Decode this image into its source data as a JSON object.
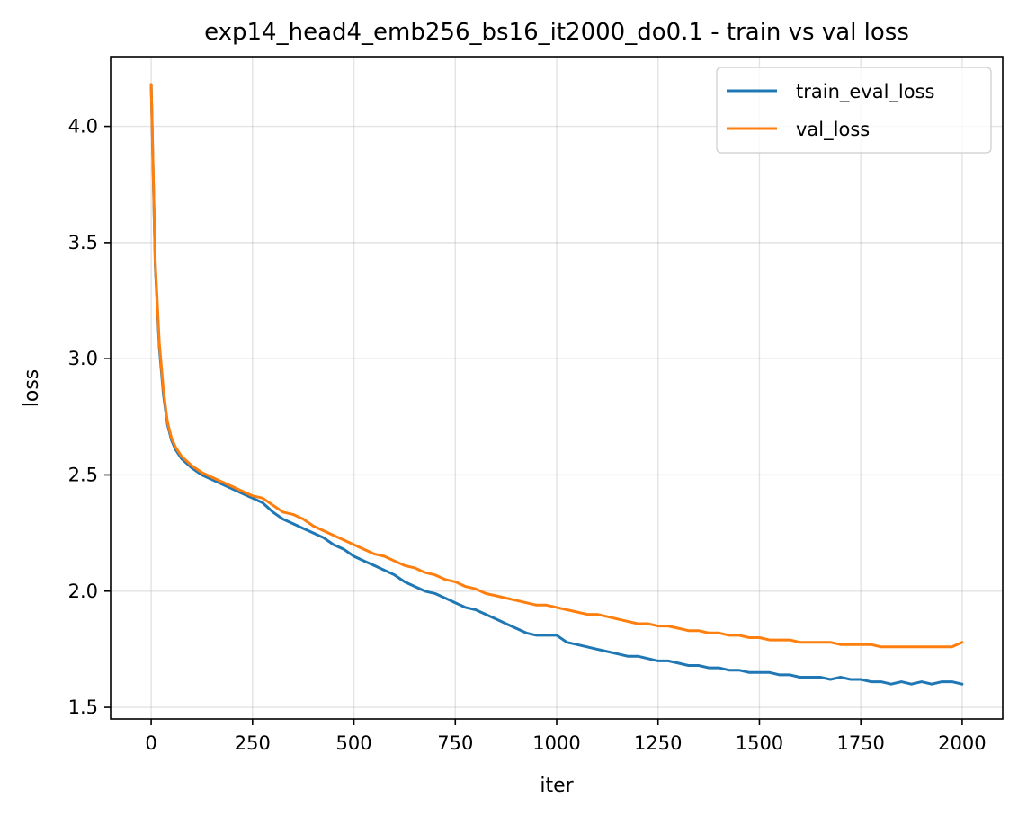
{
  "chart_data": {
    "type": "line",
    "title": "exp14_head4_emb256_bs16_it2000_do0.1 - train vs val loss",
    "xlabel": "iter",
    "ylabel": "loss",
    "xlim": [
      -100,
      2100
    ],
    "ylim": [
      1.45,
      4.3
    ],
    "x_ticks": [
      0,
      250,
      500,
      750,
      1000,
      1250,
      1500,
      1750,
      2000
    ],
    "y_ticks": [
      1.5,
      2.0,
      2.5,
      3.0,
      3.5,
      4.0
    ],
    "y_tick_labels": [
      "1.5",
      "2.0",
      "2.5",
      "3.0",
      "3.5",
      "4.0"
    ],
    "grid": true,
    "legend_position": "top-right",
    "series": [
      {
        "name": "train_eval_loss",
        "color": "#1f77b4",
        "x": [
          0,
          10,
          20,
          30,
          40,
          50,
          60,
          75,
          100,
          125,
          150,
          175,
          200,
          225,
          250,
          275,
          300,
          325,
          350,
          375,
          400,
          425,
          450,
          475,
          500,
          525,
          550,
          575,
          600,
          625,
          650,
          675,
          700,
          725,
          750,
          775,
          800,
          825,
          850,
          875,
          900,
          925,
          950,
          975,
          1000,
          1025,
          1050,
          1075,
          1100,
          1125,
          1150,
          1175,
          1200,
          1225,
          1250,
          1275,
          1300,
          1325,
          1350,
          1375,
          1400,
          1425,
          1450,
          1475,
          1500,
          1525,
          1550,
          1575,
          1600,
          1625,
          1650,
          1675,
          1700,
          1725,
          1750,
          1775,
          1800,
          1825,
          1850,
          1875,
          1900,
          1925,
          1950,
          1975,
          2000
        ],
        "values": [
          4.18,
          3.4,
          3.05,
          2.85,
          2.72,
          2.65,
          2.61,
          2.57,
          2.53,
          2.5,
          2.48,
          2.46,
          2.44,
          2.42,
          2.4,
          2.38,
          2.34,
          2.31,
          2.29,
          2.27,
          2.25,
          2.23,
          2.2,
          2.18,
          2.15,
          2.13,
          2.11,
          2.09,
          2.07,
          2.04,
          2.02,
          2.0,
          1.99,
          1.97,
          1.95,
          1.93,
          1.92,
          1.9,
          1.88,
          1.86,
          1.84,
          1.82,
          1.81,
          1.81,
          1.81,
          1.78,
          1.77,
          1.76,
          1.75,
          1.74,
          1.73,
          1.72,
          1.72,
          1.71,
          1.7,
          1.7,
          1.69,
          1.68,
          1.68,
          1.67,
          1.67,
          1.66,
          1.66,
          1.65,
          1.65,
          1.65,
          1.64,
          1.64,
          1.63,
          1.63,
          1.63,
          1.62,
          1.63,
          1.62,
          1.62,
          1.61,
          1.61,
          1.6,
          1.61,
          1.6,
          1.61,
          1.6,
          1.61,
          1.61,
          1.6
        ]
      },
      {
        "name": "val_loss",
        "color": "#ff7f0e",
        "x": [
          0,
          10,
          20,
          30,
          40,
          50,
          60,
          75,
          100,
          125,
          150,
          175,
          200,
          225,
          250,
          275,
          300,
          325,
          350,
          375,
          400,
          425,
          450,
          475,
          500,
          525,
          550,
          575,
          600,
          625,
          650,
          675,
          700,
          725,
          750,
          775,
          800,
          825,
          850,
          875,
          900,
          925,
          950,
          975,
          1000,
          1025,
          1050,
          1075,
          1100,
          1125,
          1150,
          1175,
          1200,
          1225,
          1250,
          1275,
          1300,
          1325,
          1350,
          1375,
          1400,
          1425,
          1450,
          1475,
          1500,
          1525,
          1550,
          1575,
          1600,
          1625,
          1650,
          1675,
          1700,
          1725,
          1750,
          1775,
          1800,
          1825,
          1850,
          1875,
          1900,
          1925,
          1950,
          1975,
          2000
        ],
        "values": [
          4.18,
          3.42,
          3.07,
          2.87,
          2.73,
          2.66,
          2.62,
          2.58,
          2.54,
          2.51,
          2.49,
          2.47,
          2.45,
          2.43,
          2.41,
          2.4,
          2.37,
          2.34,
          2.33,
          2.31,
          2.28,
          2.26,
          2.24,
          2.22,
          2.2,
          2.18,
          2.16,
          2.15,
          2.13,
          2.11,
          2.1,
          2.08,
          2.07,
          2.05,
          2.04,
          2.02,
          2.01,
          1.99,
          1.98,
          1.97,
          1.96,
          1.95,
          1.94,
          1.94,
          1.93,
          1.92,
          1.91,
          1.9,
          1.9,
          1.89,
          1.88,
          1.87,
          1.86,
          1.86,
          1.85,
          1.85,
          1.84,
          1.83,
          1.83,
          1.82,
          1.82,
          1.81,
          1.81,
          1.8,
          1.8,
          1.79,
          1.79,
          1.79,
          1.78,
          1.78,
          1.78,
          1.78,
          1.77,
          1.77,
          1.77,
          1.77,
          1.76,
          1.76,
          1.76,
          1.76,
          1.76,
          1.76,
          1.76,
          1.76,
          1.78
        ]
      }
    ]
  }
}
